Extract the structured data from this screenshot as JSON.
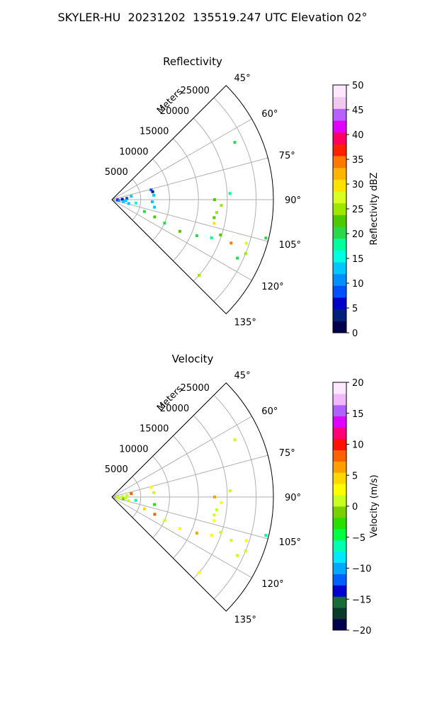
{
  "page_title": "SKYLER-HU  20231202  135519.247 UTC Elevation 02°",
  "chart_data": [
    {
      "type": "polar-sector",
      "title": "Reflectivity",
      "radial_label": "Meters",
      "radial_ticks": [
        "5000",
        "10000",
        "15000",
        "20000",
        "25000"
      ],
      "radial_values": [
        5000,
        10000,
        15000,
        20000,
        25000
      ],
      "radial_max": 28000,
      "angle_ticks": [
        "45°",
        "60°",
        "75°",
        "90°",
        "105°",
        "120°",
        "135°"
      ],
      "angle_values": [
        45,
        60,
        75,
        90,
        105,
        120,
        135
      ],
      "angle_range": [
        45,
        135
      ],
      "grid": true,
      "colorbar": {
        "label": "Reflectivity dBZ",
        "min": 0,
        "max": 50,
        "ticks": [
          "0",
          "5",
          "10",
          "15",
          "20",
          "25",
          "30",
          "35",
          "40",
          "45",
          "50"
        ],
        "tick_values": [
          0,
          5,
          10,
          15,
          20,
          25,
          30,
          35,
          40,
          45,
          50
        ],
        "colors": [
          "#00004c",
          "#00207a",
          "#0000c8",
          "#0050ff",
          "#0090ff",
          "#00c8ff",
          "#00ffe0",
          "#00ff9a",
          "#2bd84a",
          "#4ec800",
          "#9ee800",
          "#d8ff1e",
          "#ffe200",
          "#ffb400",
          "#ff7800",
          "#ff2000",
          "#ff0060",
          "#e000ff",
          "#b860ff",
          "#f0c8f0",
          "#ffe8ff"
        ]
      },
      "echoes": [
        {
          "angle": 92.5,
          "range": 1000,
          "value": 6
        },
        {
          "angle": 97,
          "range": 1200,
          "value": 10
        },
        {
          "angle": 88,
          "range": 1800,
          "value": 7
        },
        {
          "angle": 100,
          "range": 2000,
          "value": 12
        },
        {
          "angle": 85,
          "range": 2600,
          "value": 9
        },
        {
          "angle": 94,
          "range": 2400,
          "value": 14
        },
        {
          "angle": 80,
          "range": 3400,
          "value": 12
        },
        {
          "angle": 103,
          "range": 3000,
          "value": 13
        },
        {
          "angle": 98,
          "range": 4200,
          "value": 15
        },
        {
          "angle": 76,
          "range": 7000,
          "value": 8
        },
        {
          "angle": 79,
          "range": 7200,
          "value": 3
        },
        {
          "angle": 84,
          "range": 7300,
          "value": 12
        },
        {
          "angle": 93,
          "range": 7000,
          "value": 14
        },
        {
          "angle": 100,
          "range": 7500,
          "value": 13
        },
        {
          "angle": 110,
          "range": 6000,
          "value": 20
        },
        {
          "angle": 112,
          "range": 8000,
          "value": 22
        },
        {
          "angle": 114,
          "range": 10000,
          "value": 20
        },
        {
          "angle": 115,
          "range": 13000,
          "value": 23
        },
        {
          "angle": 113,
          "range": 16000,
          "value": 21
        },
        {
          "angle": 111,
          "range": 18500,
          "value": 19
        },
        {
          "angle": 108,
          "range": 19800,
          "value": 22
        },
        {
          "angle": 103,
          "range": 18200,
          "value": 30
        },
        {
          "angle": 100,
          "range": 18000,
          "value": 22
        },
        {
          "angle": 97,
          "range": 18300,
          "value": 24
        },
        {
          "angle": 93,
          "range": 19000,
          "value": 25
        },
        {
          "angle": 90,
          "range": 17800,
          "value": 22
        },
        {
          "angle": 110,
          "range": 22000,
          "value": 35
        },
        {
          "angle": 108,
          "range": 24500,
          "value": 28
        },
        {
          "angle": 112,
          "range": 25000,
          "value": 26
        },
        {
          "angle": 115,
          "range": 24000,
          "value": 20
        },
        {
          "angle": 131,
          "range": 20000,
          "value": 26
        },
        {
          "angle": 65,
          "range": 23500,
          "value": 21
        },
        {
          "angle": 87,
          "range": 20500,
          "value": 18
        },
        {
          "angle": 104,
          "range": 27500,
          "value": 20
        }
      ]
    },
    {
      "type": "polar-sector",
      "title": "Velocity",
      "radial_label": "Meters",
      "radial_ticks": [
        "5000",
        "10000",
        "15000",
        "20000",
        "25000"
      ],
      "radial_values": [
        5000,
        10000,
        15000,
        20000,
        25000
      ],
      "radial_max": 28000,
      "angle_ticks": [
        "45°",
        "60°",
        "75°",
        "90°",
        "105°",
        "120°",
        "135°"
      ],
      "angle_values": [
        45,
        60,
        75,
        90,
        105,
        120,
        135
      ],
      "angle_range": [
        45,
        135
      ],
      "grid": true,
      "colorbar": {
        "label": "Velocity (m/s)",
        "min": -20,
        "max": 20,
        "ticks": [
          "−20",
          "−15",
          "−10",
          "−5",
          "0",
          "5",
          "10",
          "15",
          "20"
        ],
        "tick_values": [
          -20,
          -15,
          -10,
          -5,
          0,
          5,
          10,
          15,
          20
        ],
        "colors": [
          "#00004c",
          "#0a3a2a",
          "#1a6a3a",
          "#0000d0",
          "#0060ff",
          "#00a8ff",
          "#00e8ff",
          "#00ffb0",
          "#00ff40",
          "#28e000",
          "#78d000",
          "#c8ff20",
          "#ffff00",
          "#ffd800",
          "#ffa000",
          "#ff6000",
          "#ff1000",
          "#ff0078",
          "#e000ff",
          "#b060ff",
          "#f0b8ff",
          "#ffe8ff"
        ]
      },
      "echoes": [
        {
          "angle": 92.5,
          "range": 1000,
          "value": 0
        },
        {
          "angle": 97,
          "range": 1200,
          "value": 1
        },
        {
          "angle": 88,
          "range": 1800,
          "value": 0
        },
        {
          "angle": 100,
          "range": 2000,
          "value": -1
        },
        {
          "angle": 85,
          "range": 2600,
          "value": 1
        },
        {
          "angle": 94,
          "range": 2400,
          "value": 0
        },
        {
          "angle": 80,
          "range": 3400,
          "value": 8
        },
        {
          "angle": 103,
          "range": 3000,
          "value": 0
        },
        {
          "angle": 98,
          "range": 4200,
          "value": -6
        },
        {
          "angle": 76,
          "range": 7000,
          "value": 2
        },
        {
          "angle": 84,
          "range": 7300,
          "value": 0
        },
        {
          "angle": 100,
          "range": 7500,
          "value": -3
        },
        {
          "angle": 110,
          "range": 6000,
          "value": 5
        },
        {
          "angle": 112,
          "range": 8000,
          "value": 8
        },
        {
          "angle": 114,
          "range": 10000,
          "value": 1
        },
        {
          "angle": 115,
          "range": 13000,
          "value": 3
        },
        {
          "angle": 113,
          "range": 16000,
          "value": 7
        },
        {
          "angle": 111,
          "range": 18500,
          "value": 2
        },
        {
          "angle": 108,
          "range": 19800,
          "value": 0
        },
        {
          "angle": 103,
          "range": 18200,
          "value": 3
        },
        {
          "angle": 100,
          "range": 18000,
          "value": 1
        },
        {
          "angle": 97,
          "range": 18300,
          "value": 0
        },
        {
          "angle": 93,
          "range": 19000,
          "value": 2
        },
        {
          "angle": 90,
          "range": 17800,
          "value": 6
        },
        {
          "angle": 110,
          "range": 22000,
          "value": 1
        },
        {
          "angle": 108,
          "range": 24500,
          "value": 2
        },
        {
          "angle": 112,
          "range": 25000,
          "value": 1
        },
        {
          "angle": 115,
          "range": 24000,
          "value": 0
        },
        {
          "angle": 131,
          "range": 20000,
          "value": 2
        },
        {
          "angle": 65,
          "range": 23500,
          "value": 1
        },
        {
          "angle": 87,
          "range": 20500,
          "value": 1
        },
        {
          "angle": 104,
          "range": 27500,
          "value": -6
        }
      ]
    }
  ]
}
